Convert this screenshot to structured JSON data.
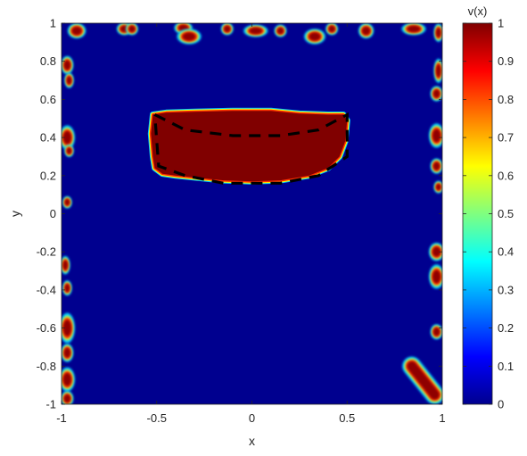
{
  "chart_data": {
    "type": "heatmap",
    "title": "",
    "xlabel": "x",
    "ylabel": "y",
    "xlim": [
      -1,
      1
    ],
    "ylim": [
      -1,
      1
    ],
    "grid": false,
    "colormap": "jet",
    "background_value": 0,
    "x_ticks": [
      {
        "value": -1,
        "label": "-1"
      },
      {
        "value": -0.5,
        "label": "-0.5"
      },
      {
        "value": 0,
        "label": "0"
      },
      {
        "value": 0.5,
        "label": "0.5"
      },
      {
        "value": 1,
        "label": "1"
      }
    ],
    "y_ticks": [
      {
        "value": 1,
        "label": "1"
      },
      {
        "value": 0.8,
        "label": "0.8"
      },
      {
        "value": 0.6,
        "label": "0.6"
      },
      {
        "value": 0.4,
        "label": "0.4"
      },
      {
        "value": 0.2,
        "label": "0.2"
      },
      {
        "value": 0,
        "label": "0"
      },
      {
        "value": -0.2,
        "label": "-0.2"
      },
      {
        "value": -0.4,
        "label": "-0.4"
      },
      {
        "value": -0.6,
        "label": "-0.6"
      },
      {
        "value": -0.8,
        "label": "-0.8"
      },
      {
        "value": -1,
        "label": "-1"
      }
    ],
    "colorbar": {
      "label": "v(x)",
      "range": [
        0,
        1
      ],
      "ticks": [
        {
          "value": 1,
          "label": "1"
        },
        {
          "value": 0.9,
          "label": "0.9"
        },
        {
          "value": 0.8,
          "label": "0.8"
        },
        {
          "value": 0.7,
          "label": "0.7"
        },
        {
          "value": 0.6,
          "label": "0.6"
        },
        {
          "value": 0.5,
          "label": "0.5"
        },
        {
          "value": 0.4,
          "label": "0.4"
        },
        {
          "value": 0.3,
          "label": "0.3"
        },
        {
          "value": 0.2,
          "label": "0.2"
        },
        {
          "value": 0.1,
          "label": "0.1"
        },
        {
          "value": 0,
          "label": "0"
        }
      ]
    },
    "region_value_1": {
      "value": 1,
      "outline": [
        [
          -0.52,
          0.52
        ],
        [
          -0.45,
          0.53
        ],
        [
          -0.3,
          0.535
        ],
        [
          -0.1,
          0.54
        ],
        [
          0.1,
          0.54
        ],
        [
          0.25,
          0.525
        ],
        [
          0.4,
          0.52
        ],
        [
          0.48,
          0.52
        ],
        [
          0.5,
          0.49
        ],
        [
          0.49,
          0.38
        ],
        [
          0.46,
          0.3
        ],
        [
          0.4,
          0.24
        ],
        [
          0.3,
          0.2
        ],
        [
          0.15,
          0.175
        ],
        [
          0.0,
          0.17
        ],
        [
          -0.15,
          0.175
        ],
        [
          -0.3,
          0.19
        ],
        [
          -0.4,
          0.2
        ],
        [
          -0.47,
          0.21
        ],
        [
          -0.51,
          0.24
        ],
        [
          -0.52,
          0.3
        ],
        [
          -0.53,
          0.42
        ]
      ]
    },
    "dashed_curve": {
      "points": [
        [
          -0.51,
          0.52
        ],
        [
          -0.35,
          0.44
        ],
        [
          -0.1,
          0.41
        ],
        [
          0.15,
          0.41
        ],
        [
          0.35,
          0.44
        ],
        [
          0.5,
          0.52
        ],
        [
          0.5,
          0.3
        ],
        [
          0.35,
          0.2
        ],
        [
          0.15,
          0.16
        ],
        [
          -0.15,
          0.16
        ],
        [
          -0.35,
          0.2
        ],
        [
          -0.49,
          0.25
        ],
        [
          -0.51,
          0.52
        ]
      ]
    },
    "boundary_blobs": [
      {
        "x": -0.92,
        "y": 0.96,
        "rx": 0.03,
        "ry": 0.025
      },
      {
        "x": -0.67,
        "y": 0.97,
        "rx": 0.025,
        "ry": 0.02
      },
      {
        "x": -0.63,
        "y": 0.97,
        "rx": 0.02,
        "ry": 0.02
      },
      {
        "x": -0.36,
        "y": 0.975,
        "rx": 0.03,
        "ry": 0.02
      },
      {
        "x": -0.33,
        "y": 0.93,
        "rx": 0.04,
        "ry": 0.025
      },
      {
        "x": -0.13,
        "y": 0.97,
        "rx": 0.02,
        "ry": 0.02
      },
      {
        "x": 0.02,
        "y": 0.96,
        "rx": 0.04,
        "ry": 0.02
      },
      {
        "x": 0.15,
        "y": 0.96,
        "rx": 0.02,
        "ry": 0.02
      },
      {
        "x": 0.33,
        "y": 0.93,
        "rx": 0.035,
        "ry": 0.025
      },
      {
        "x": 0.42,
        "y": 0.97,
        "rx": 0.02,
        "ry": 0.02
      },
      {
        "x": 0.6,
        "y": 0.96,
        "rx": 0.025,
        "ry": 0.025
      },
      {
        "x": 0.85,
        "y": 0.97,
        "rx": 0.04,
        "ry": 0.02
      },
      {
        "x": 0.98,
        "y": 0.95,
        "rx": 0.015,
        "ry": 0.03
      },
      {
        "x": -0.97,
        "y": 0.78,
        "rx": 0.02,
        "ry": 0.03
      },
      {
        "x": -0.96,
        "y": 0.7,
        "rx": 0.015,
        "ry": 0.025
      },
      {
        "x": -0.97,
        "y": 0.4,
        "rx": 0.025,
        "ry": 0.04
      },
      {
        "x": -0.96,
        "y": 0.33,
        "rx": 0.015,
        "ry": 0.02
      },
      {
        "x": -0.97,
        "y": 0.06,
        "rx": 0.015,
        "ry": 0.02
      },
      {
        "x": -0.98,
        "y": -0.27,
        "rx": 0.015,
        "ry": 0.03
      },
      {
        "x": -0.97,
        "y": -0.39,
        "rx": 0.015,
        "ry": 0.025
      },
      {
        "x": -0.97,
        "y": -0.6,
        "rx": 0.025,
        "ry": 0.05
      },
      {
        "x": -0.97,
        "y": -0.73,
        "rx": 0.02,
        "ry": 0.03
      },
      {
        "x": -0.97,
        "y": -0.87,
        "rx": 0.025,
        "ry": 0.04
      },
      {
        "x": -0.97,
        "y": -0.97,
        "rx": 0.02,
        "ry": 0.025
      },
      {
        "x": 0.98,
        "y": 0.75,
        "rx": 0.015,
        "ry": 0.04
      },
      {
        "x": 0.97,
        "y": 0.63,
        "rx": 0.02,
        "ry": 0.025
      },
      {
        "x": 0.97,
        "y": 0.41,
        "rx": 0.025,
        "ry": 0.04
      },
      {
        "x": 0.97,
        "y": 0.25,
        "rx": 0.02,
        "ry": 0.025
      },
      {
        "x": 0.98,
        "y": 0.14,
        "rx": 0.015,
        "ry": 0.02
      },
      {
        "x": 0.97,
        "y": -0.2,
        "rx": 0.025,
        "ry": 0.03
      },
      {
        "x": 0.97,
        "y": -0.33,
        "rx": 0.025,
        "ry": 0.04
      },
      {
        "x": 0.97,
        "y": -0.62,
        "rx": 0.02,
        "ry": 0.025
      }
    ],
    "diagonal_blob": {
      "x1": 0.84,
      "y1": -0.8,
      "x2": 0.96,
      "y2": -0.95,
      "width": 0.05
    }
  }
}
